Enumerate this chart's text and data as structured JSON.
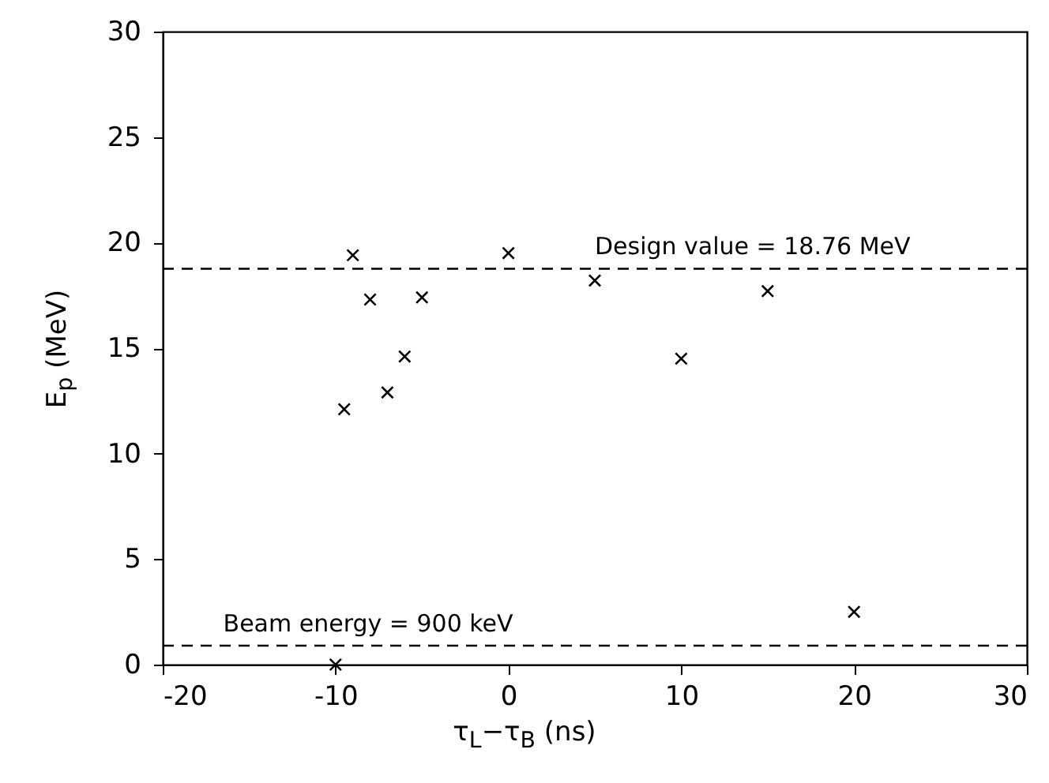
{
  "chart_data": {
    "type": "scatter",
    "xlabel": "τ$_{L}$−τ$_{B}$ (ns)",
    "ylabel": "E$_{p}$ (MeV)",
    "x": [
      -9.5,
      -9,
      -8,
      -7,
      -6,
      -5,
      0,
      5,
      10,
      15,
      20,
      -10
    ],
    "series": [
      {
        "color": "#000000",
        "values": [
          12.1,
          19.4,
          17.3,
          12.9,
          14.6,
          17.4,
          19.5,
          18.2,
          14.5,
          17.7,
          2.5,
          0
        ]
      }
    ],
    "xlim": [
      -20,
      30
    ],
    "xticks": [
      -20,
      -10,
      0,
      10,
      20,
      30
    ],
    "ylim": [
      0,
      30
    ],
    "yticks": [
      0,
      5,
      10,
      15,
      20,
      25,
      30
    ],
    "ref_lines": [
      {
        "axis": "y",
        "value": 18.76,
        "label": "Design value = 18.76 MeV",
        "line_style": "dashed",
        "color": "#000000"
      },
      {
        "axis": "y",
        "value": 0.9,
        "label": "Beam energy = 900 keV",
        "line_style": "dashed",
        "color": "#000000"
      }
    ],
    "marker": "cross"
  }
}
